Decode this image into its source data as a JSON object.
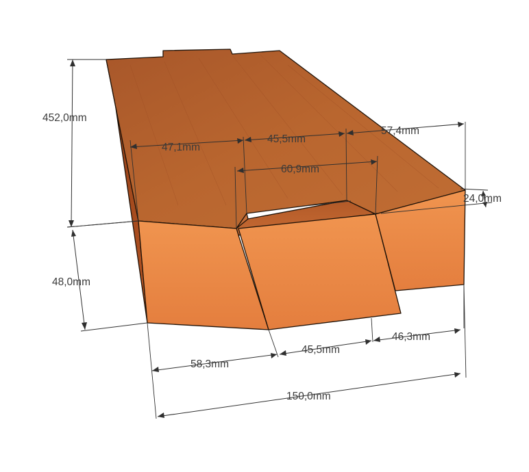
{
  "dimensions": {
    "length": "452,0mm",
    "height": "48,0mm",
    "width_total": "150,0mm",
    "bottom_left": "58,3mm",
    "bottom_middle": "45,5mm",
    "bottom_right": "46,3mm",
    "top_left": "47,1mm",
    "top_middle": "45,5mm",
    "top_right": "57,4mm",
    "groove_width": "60,9mm",
    "groove_depth": "24,0mm"
  },
  "colors": {
    "top_face": "#b5622f",
    "front_face": "#e8894a",
    "side_face": "#a1471c",
    "edge": "#1e1208",
    "dimension": "#2f2f2f"
  }
}
